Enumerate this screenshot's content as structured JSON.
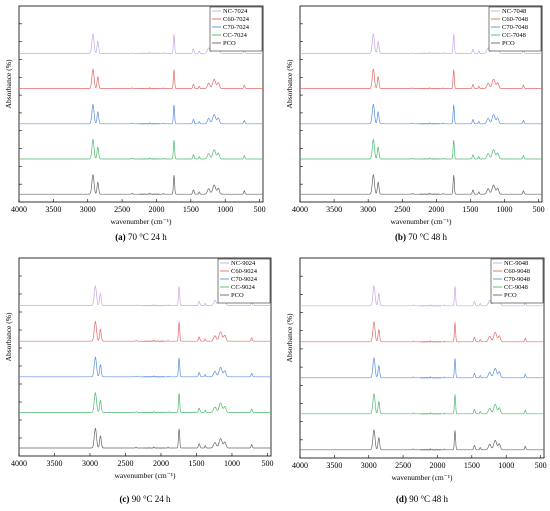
{
  "figure": {
    "panels": [
      {
        "caption_letter": "(a)",
        "caption_text": " 70 °C 24 h",
        "chart_data": {
          "type": "line",
          "xlabel": "wavenumber (cm⁻¹)",
          "ylabel": "Absorbance (%)",
          "xlim": [
            4000,
            450
          ],
          "x_ticks": [
            "4000",
            "3500",
            "3000",
            "2500",
            "2000",
            "1500",
            "1000",
            "500"
          ],
          "x_reversed": true,
          "y_ticks_labeled": false,
          "legend_position": "top-right",
          "series": [
            {
              "name": "NC-7024",
              "color": "#c9a8e6",
              "order": 0
            },
            {
              "name": "C60-7024",
              "color": "#e36b6b",
              "order": 1
            },
            {
              "name": "C70-7024",
              "color": "#5b8fe0",
              "order": 2
            },
            {
              "name": "CC-7024",
              "color": "#4cbb6e",
              "order": 3
            },
            {
              "name": "PCO",
              "color": "#666666",
              "order": 4
            }
          ],
          "peaks_cm1": [
            2924,
            2853,
            1745,
            1462,
            1377,
            1240,
            1160,
            1100,
            722
          ]
        }
      },
      {
        "caption_letter": "(b)",
        "caption_text": " 70 °C 48 h",
        "chart_data": {
          "type": "line",
          "xlabel": "wavenumber (cm⁻¹)",
          "ylabel": "Absorbance (%)",
          "xlim": [
            4000,
            450
          ],
          "x_ticks": [
            "4000",
            "3500",
            "3000",
            "2500",
            "2000",
            "1500",
            "1000",
            "500"
          ],
          "x_reversed": true,
          "y_ticks_labeled": false,
          "legend_position": "top-right",
          "series": [
            {
              "name": "NC-7048",
              "color": "#c9a8e6",
              "order": 0
            },
            {
              "name": "C60-7048",
              "color": "#e36b6b",
              "order": 1
            },
            {
              "name": "C70-7048",
              "color": "#5b8fe0",
              "order": 2
            },
            {
              "name": "CC-7048",
              "color": "#4cbb6e",
              "order": 3
            },
            {
              "name": "PCO",
              "color": "#666666",
              "order": 4
            }
          ],
          "peaks_cm1": [
            2924,
            2853,
            1745,
            1462,
            1377,
            1240,
            1160,
            1100,
            722
          ]
        }
      },
      {
        "caption_letter": "(c)",
        "caption_text": " 90 °C 24 h",
        "chart_data": {
          "type": "line",
          "xlabel": "wavenumber (cm⁻¹)",
          "ylabel": "Absorbance (%)",
          "xlim": [
            4000,
            450
          ],
          "x_ticks": [
            "4000",
            "3500",
            "3000",
            "2500",
            "2000",
            "1500",
            "1000",
            "500"
          ],
          "x_reversed": true,
          "y_ticks_labeled": false,
          "legend_position": "top-right",
          "series": [
            {
              "name": "NC-9024",
              "color": "#c9a8e6",
              "order": 0
            },
            {
              "name": "C60-9024",
              "color": "#e36b6b",
              "order": 1
            },
            {
              "name": "C70-9024",
              "color": "#5b8fe0",
              "order": 2
            },
            {
              "name": "CC-9024",
              "color": "#4cbb6e",
              "order": 3
            },
            {
              "name": "PCO",
              "color": "#666666",
              "order": 4
            }
          ],
          "peaks_cm1": [
            2924,
            2853,
            1745,
            1462,
            1377,
            1240,
            1160,
            1100,
            722
          ]
        }
      },
      {
        "caption_letter": "(d)",
        "caption_text": " 90 °C 48 h",
        "chart_data": {
          "type": "line",
          "xlabel": "wavenumber (cm⁻¹)",
          "ylabel": "Absorbance (%)",
          "xlim": [
            4000,
            450
          ],
          "x_ticks": [
            "4000",
            "3500",
            "3000",
            "2500",
            "2000",
            "1500",
            "1000",
            "500"
          ],
          "x_reversed": true,
          "y_ticks_labeled": false,
          "legend_position": "top-right",
          "series": [
            {
              "name": "NC-9048",
              "color": "#c9a8e6",
              "order": 0
            },
            {
              "name": "C60-9048",
              "color": "#e36b6b",
              "order": 1
            },
            {
              "name": "C70-9048",
              "color": "#5b8fe0",
              "order": 2
            },
            {
              "name": "CC-9048",
              "color": "#4cbb6e",
              "order": 3
            },
            {
              "name": "PCO",
              "color": "#666666",
              "order": 4
            }
          ],
          "peaks_cm1": [
            2924,
            2853,
            1745,
            1462,
            1377,
            1240,
            1160,
            1100,
            722
          ]
        }
      }
    ]
  }
}
